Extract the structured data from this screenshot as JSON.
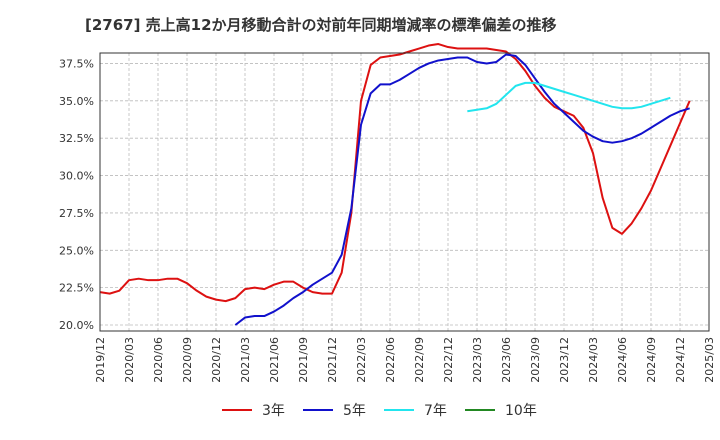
{
  "chart_data": {
    "type": "line",
    "title": "[2767]  売上高12か月移動合計の対前年同期増減率の標準偏差の推移",
    "xlabel": "",
    "ylabel": "",
    "ylim": [
      19.6,
      38.2
    ],
    "yticks": [
      20.0,
      22.5,
      25.0,
      27.5,
      30.0,
      32.5,
      35.0,
      37.5
    ],
    "ytick_labels": [
      "20.0%",
      "22.5%",
      "25.0%",
      "27.5%",
      "30.0%",
      "32.5%",
      "35.0%",
      "37.5%"
    ],
    "x_start": "2019/12",
    "x_end": "2025/03",
    "xtick_labels": [
      "2019/12",
      "2020/03",
      "2020/06",
      "2020/09",
      "2020/12",
      "2021/03",
      "2021/06",
      "2021/09",
      "2021/12",
      "2022/03",
      "2022/06",
      "2022/09",
      "2022/12",
      "2023/03",
      "2023/06",
      "2023/09",
      "2023/12",
      "2024/03",
      "2024/06",
      "2024/09",
      "2024/12",
      "2025/03"
    ],
    "grid": true,
    "legend_position": "bottom",
    "series": [
      {
        "name": "3年",
        "color": "#dd1111",
        "start": "2019/12",
        "values": [
          22.2,
          22.1,
          22.3,
          23.0,
          23.1,
          23.0,
          23.0,
          23.1,
          23.1,
          22.8,
          22.3,
          21.9,
          21.7,
          21.6,
          21.8,
          22.4,
          22.5,
          22.4,
          22.7,
          22.9,
          22.9,
          22.5,
          22.2,
          22.1,
          22.1,
          23.5,
          27.5,
          35.0,
          37.4,
          37.9,
          38.0,
          38.1,
          38.3,
          38.5,
          38.7,
          38.8,
          38.6,
          38.5,
          38.5,
          38.5,
          38.5,
          38.4,
          38.3,
          37.8,
          37.0,
          36.0,
          35.2,
          34.6,
          34.3,
          34.0,
          33.2,
          31.5,
          28.5,
          26.5,
          26.1,
          26.8,
          27.8,
          29.0,
          30.5,
          32.0,
          33.5,
          35.0
        ]
      },
      {
        "name": "5年",
        "color": "#1111cc",
        "start": "2021/02",
        "values": [
          20.0,
          20.5,
          20.6,
          20.6,
          20.9,
          21.3,
          21.8,
          22.2,
          22.7,
          23.1,
          23.5,
          24.7,
          27.8,
          33.4,
          35.5,
          36.1,
          36.1,
          36.4,
          36.8,
          37.2,
          37.5,
          37.7,
          37.8,
          37.9,
          37.9,
          37.6,
          37.5,
          37.6,
          38.1,
          38.0,
          37.4,
          36.5,
          35.6,
          34.8,
          34.2,
          33.6,
          33.0,
          32.6,
          32.3,
          32.2,
          32.3,
          32.5,
          32.8,
          33.2,
          33.6,
          34.0,
          34.3,
          34.5
        ]
      },
      {
        "name": "7年",
        "color": "#22e5ee",
        "start": "2023/02",
        "values": [
          34.3,
          34.4,
          34.5,
          34.8,
          35.4,
          36.0,
          36.2,
          36.2,
          36.0,
          35.8,
          35.6,
          35.4,
          35.2,
          35.0,
          34.8,
          34.6,
          34.5,
          34.5,
          34.6,
          34.8,
          35.0,
          35.2
        ]
      },
      {
        "name": "10年",
        "color": "#228822",
        "start": "",
        "values": []
      }
    ]
  }
}
